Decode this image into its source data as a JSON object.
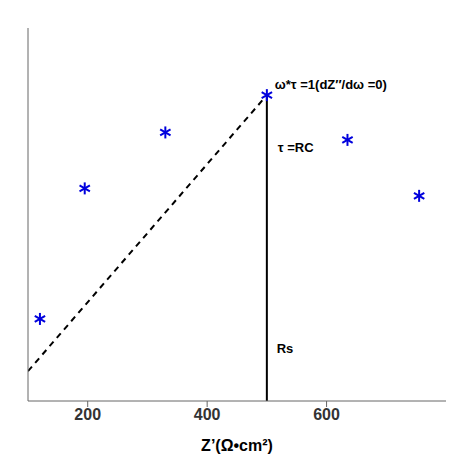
{
  "chart_data": {
    "type": "scatter",
    "xlabel": "Z’(Ω•cm²)",
    "x": [
      120,
      195,
      330,
      500,
      635,
      755
    ],
    "values": [
      -0.68,
      -0.33,
      -0.18,
      -0.08,
      -0.2,
      -0.35
    ],
    "color": "#0000dd",
    "marker": "asterisk",
    "xlim": [
      100,
      800
    ],
    "ylim": [
      -0.9,
      0.1
    ],
    "xticks": [
      200,
      400,
      600
    ],
    "tick_labels": "x",
    "lines": [
      {
        "x": [
          100,
          500
        ],
        "values": [
          -0.82,
          -0.08
        ],
        "color": "#000000",
        "line_style": "dashed"
      },
      {
        "x": [
          500,
          500
        ],
        "values": [
          -0.9,
          -0.08
        ],
        "color": "#000000",
        "line_style": "solid"
      }
    ],
    "annotations": [
      {
        "text": "ω*τ =1(dZ′′/dω =0)",
        "x": 505,
        "y": -0.05
      },
      {
        "text": "τ =RC",
        "x": 510,
        "y": -0.22
      },
      {
        "text": "Rs",
        "x": 508,
        "y": -0.76
      }
    ]
  }
}
